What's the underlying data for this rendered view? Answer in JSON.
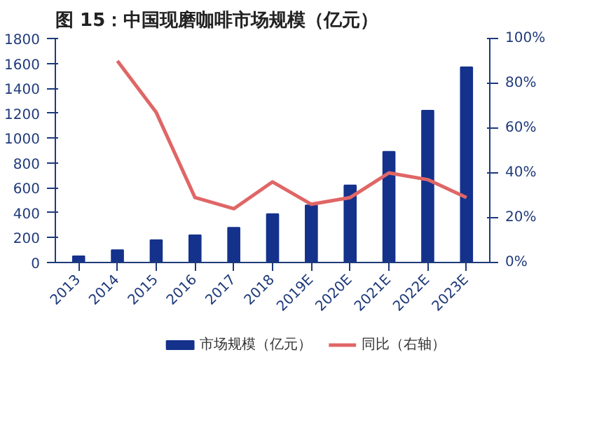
{
  "chart_data": {
    "type": "bar",
    "title": "图 15：中国现磨咖啡市场规模（亿元）",
    "categories": [
      "2013",
      "2014",
      "2015",
      "2016",
      "2017",
      "2018",
      "2019E",
      "2020E",
      "2021E",
      "2022E",
      "2023E"
    ],
    "series": [
      {
        "name": "市场规模（亿元）",
        "color": "#14328c",
        "values": [
          50,
          100,
          180,
          220,
          280,
          390,
          460,
          620,
          890,
          1220,
          1570
        ]
      },
      {
        "name": "同比（右轴）",
        "type": "line",
        "axis": "y2",
        "color": "#e06666",
        "values": [
          null,
          90,
          67,
          29,
          24,
          36,
          26,
          29,
          40,
          37,
          29
        ]
      }
    ],
    "ylim": [
      0,
      1800
    ],
    "yticks": [
      0,
      200,
      400,
      600,
      800,
      1000,
      1200,
      1400,
      1600,
      1800
    ],
    "y2lim": [
      0,
      100
    ],
    "y2ticks": [
      {
        "value": 0,
        "label": "0%"
      },
      {
        "value": 20,
        "label": "20%"
      },
      {
        "value": 40,
        "label": "40%"
      },
      {
        "value": 60,
        "label": "60%"
      },
      {
        "value": 80,
        "label": "80%"
      },
      {
        "value": 100,
        "label": "100%"
      }
    ],
    "grid": false,
    "legend": "bottom"
  }
}
